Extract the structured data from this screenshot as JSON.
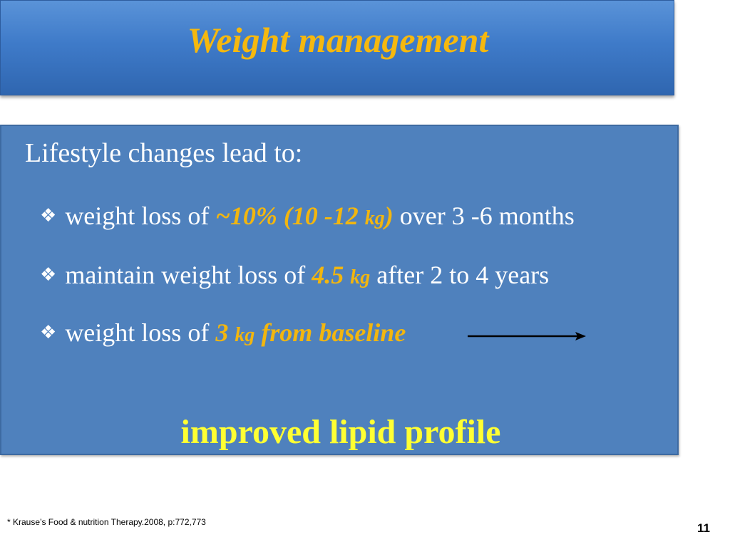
{
  "title": "Weight management",
  "intro": "Lifestyle changes lead to:",
  "bullets": [
    {
      "prefix": "weight loss of ",
      "highlight": "~10% (10 -12 ",
      "unit": "kg",
      "highlight_tail": ")",
      "suffix": " over 3 -6 months"
    },
    {
      "prefix": "maintain weight loss of ",
      "highlight": "4.5 ",
      "unit": "kg",
      "suffix": " after 2 to 4 years"
    },
    {
      "prefix": "weight loss of ",
      "highlight": "3 ",
      "unit": "kg",
      "highlight_tail": " from baseline"
    }
  ],
  "icons": {
    "bullet": "diamond-bullet-icon",
    "arrow": "right-arrow-icon"
  },
  "conclusion": "improved lipid profile",
  "footnote": "* Krause’s Food & nutrition Therapy.2008, p:772,773",
  "page_number": "11",
  "colors": {
    "title_bar": "#3f7bc9",
    "title_text": "#f5b80f",
    "content_bg": "#4f81bd",
    "highlight": "#f2b60f",
    "conclusion": "#ffff33"
  }
}
